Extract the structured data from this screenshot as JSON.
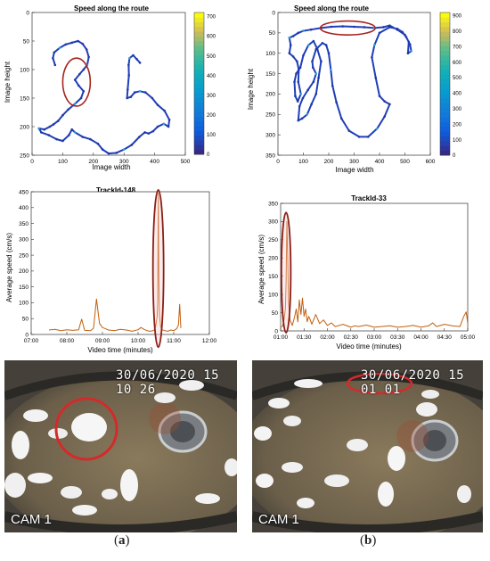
{
  "chart_data": [
    {
      "type": "scatter",
      "panel": "a",
      "title": "Speed along the route",
      "xlabel": "Image width",
      "ylabel": "Image height",
      "xlim": [
        0,
        500
      ],
      "ylim": [
        250,
        0
      ],
      "x_ticks": [
        0,
        100,
        200,
        300,
        400,
        500
      ],
      "y_ticks": [
        0,
        50,
        100,
        150,
        200,
        250
      ],
      "colorbar_ticks": [
        0,
        100,
        200,
        300,
        400,
        500,
        600,
        700
      ],
      "colorbar_range": [
        0,
        720
      ],
      "highlight_circle": {
        "x": 145,
        "y": 122,
        "rx": 45,
        "ry": 42
      },
      "route": [
        [
          75,
          92
        ],
        [
          68,
          80
        ],
        [
          72,
          70
        ],
        [
          90,
          62
        ],
        [
          110,
          56
        ],
        [
          130,
          53
        ],
        [
          150,
          50
        ],
        [
          165,
          55
        ],
        [
          178,
          65
        ],
        [
          185,
          78
        ],
        [
          180,
          92
        ],
        [
          168,
          100
        ],
        [
          155,
          108
        ],
        [
          140,
          118
        ],
        [
          152,
          128
        ],
        [
          168,
          138
        ],
        [
          160,
          150
        ],
        [
          140,
          160
        ],
        [
          118,
          170
        ],
        [
          100,
          180
        ],
        [
          85,
          190
        ],
        [
          70,
          196
        ],
        [
          58,
          200
        ],
        [
          40,
          205
        ],
        [
          22,
          203
        ],
        [
          30,
          210
        ],
        [
          55,
          215
        ],
        [
          80,
          222
        ],
        [
          100,
          225
        ],
        [
          120,
          215
        ],
        [
          130,
          205
        ],
        [
          140,
          210
        ],
        [
          165,
          218
        ],
        [
          190,
          222
        ],
        [
          215,
          230
        ],
        [
          230,
          240
        ],
        [
          250,
          247
        ],
        [
          275,
          246
        ],
        [
          300,
          240
        ],
        [
          325,
          232
        ],
        [
          350,
          218
        ],
        [
          368,
          210
        ],
        [
          380,
          212
        ],
        [
          395,
          208
        ],
        [
          410,
          200
        ],
        [
          430,
          195
        ],
        [
          445,
          200
        ],
        [
          448,
          188
        ],
        [
          432,
          172
        ],
        [
          410,
          162
        ],
        [
          392,
          150
        ],
        [
          370,
          140
        ],
        [
          352,
          138
        ],
        [
          335,
          140
        ],
        [
          322,
          148
        ],
        [
          310,
          150
        ],
        [
          312,
          135
        ],
        [
          316,
          110
        ],
        [
          315,
          92
        ],
        [
          318,
          80
        ],
        [
          330,
          75
        ],
        [
          342,
          82
        ],
        [
          352,
          88
        ]
      ]
    },
    {
      "type": "scatter",
      "panel": "b",
      "title": "Speed along the route",
      "xlabel": "Image width",
      "ylabel": "Image height",
      "xlim": [
        0,
        600
      ],
      "ylim": [
        350,
        0
      ],
      "x_ticks": [
        0,
        100,
        200,
        300,
        400,
        500,
        600
      ],
      "y_ticks": [
        0,
        50,
        100,
        150,
        200,
        250,
        300,
        350
      ],
      "colorbar_ticks": [
        0,
        100,
        200,
        300,
        400,
        500,
        600,
        700,
        800,
        900
      ],
      "colorbar_range": [
        0,
        920
      ],
      "highlight_circle": {
        "x": 275,
        "y": 38,
        "rx": 108,
        "ry": 17
      },
      "route": [
        [
          45,
          62
        ],
        [
          60,
          58
        ],
        [
          80,
          50
        ],
        [
          100,
          45
        ],
        [
          130,
          42
        ],
        [
          170,
          38
        ],
        [
          210,
          35
        ],
        [
          255,
          34
        ],
        [
          300,
          35
        ],
        [
          340,
          36
        ],
        [
          380,
          38
        ],
        [
          415,
          36
        ],
        [
          440,
          32
        ],
        [
          470,
          42
        ],
        [
          500,
          55
        ],
        [
          515,
          72
        ],
        [
          512,
          100
        ],
        [
          525,
          95
        ],
        [
          520,
          78
        ],
        [
          505,
          60
        ],
        [
          490,
          48
        ],
        [
          470,
          40
        ],
        [
          440,
          36
        ],
        [
          400,
          50
        ],
        [
          380,
          80
        ],
        [
          370,
          110
        ],
        [
          385,
          160
        ],
        [
          400,
          205
        ],
        [
          420,
          218
        ],
        [
          440,
          225
        ],
        [
          420,
          255
        ],
        [
          390,
          285
        ],
        [
          355,
          305
        ],
        [
          320,
          305
        ],
        [
          280,
          290
        ],
        [
          250,
          260
        ],
        [
          230,
          220
        ],
        [
          215,
          180
        ],
        [
          208,
          140
        ],
        [
          200,
          100
        ],
        [
          190,
          80
        ],
        [
          175,
          75
        ],
        [
          150,
          90
        ],
        [
          135,
          120
        ],
        [
          138,
          135
        ],
        [
          150,
          150
        ],
        [
          140,
          170
        ],
        [
          118,
          190
        ],
        [
          98,
          210
        ],
        [
          85,
          230
        ],
        [
          80,
          265
        ],
        [
          95,
          260
        ],
        [
          115,
          250
        ],
        [
          132,
          225
        ],
        [
          150,
          200
        ],
        [
          160,
          160
        ],
        [
          170,
          120
        ],
        [
          155,
          90
        ],
        [
          140,
          70
        ],
        [
          120,
          80
        ],
        [
          100,
          105
        ],
        [
          88,
          135
        ],
        [
          72,
          150
        ],
        [
          65,
          170
        ],
        [
          68,
          205
        ],
        [
          78,
          218
        ],
        [
          90,
          200
        ],
        [
          80,
          170
        ],
        [
          82,
          140
        ],
        [
          75,
          120
        ],
        [
          60,
          108
        ],
        [
          45,
          100
        ],
        [
          50,
          80
        ],
        [
          45,
          62
        ]
      ]
    },
    {
      "type": "line",
      "panel": "a",
      "title": "TrackId-148",
      "xlabel": "Video time (minutes)",
      "ylabel": "Average speed (cm/s)",
      "x_tick_labels": [
        "07:00",
        "08:00",
        "09:00",
        "10:00",
        "11:00",
        "12:00"
      ],
      "x_range_minutes": [
        420,
        720
      ],
      "ylim": [
        0,
        450
      ],
      "y_ticks": [
        0,
        50,
        100,
        150,
        200,
        250,
        300,
        350,
        400,
        450
      ],
      "highlight_ellipse": {
        "x_minutes": 634,
        "y": 208,
        "half_width_minutes": 9,
        "half_height": 248
      },
      "series": [
        {
          "color": "#c15f0e",
          "x": [
            450,
            460,
            470,
            480,
            490,
            500,
            503,
            505,
            510,
            520,
            525,
            530,
            532,
            535,
            540,
            545,
            550,
            560,
            570,
            580,
            590,
            600,
            605,
            610,
            615,
            620,
            625,
            628,
            630,
            632,
            633,
            634,
            635,
            636,
            638,
            640,
            645,
            650,
            655,
            660,
            665,
            668,
            670,
            672
          ],
          "y": [
            14,
            16,
            12,
            15,
            13,
            15,
            35,
            48,
            13,
            12,
            20,
            112,
            80,
            35,
            22,
            18,
            14,
            12,
            16,
            14,
            10,
            15,
            22,
            16,
            12,
            10,
            12,
            15,
            30,
            55,
            100,
            445,
            180,
            60,
            25,
            15,
            12,
            10,
            14,
            12,
            18,
            30,
            95,
            20
          ]
        }
      ]
    },
    {
      "type": "line",
      "panel": "b",
      "title": "TrackId-33",
      "xlabel": "Video time (minutes)",
      "ylabel": "Average speed (cm/s)",
      "x_tick_labels": [
        "01:00",
        "01:30",
        "02:00",
        "02:30",
        "03:00",
        "03:30",
        "04:00",
        "04:30",
        "05:00"
      ],
      "x_range_minutes": [
        60,
        300
      ],
      "ylim": [
        0,
        350
      ],
      "y_ticks": [
        0,
        50,
        100,
        150,
        200,
        250,
        300,
        350
      ],
      "highlight_ellipse": {
        "x_minutes": 67,
        "y": 160,
        "half_width_minutes": 6,
        "half_height": 165
      },
      "series": [
        {
          "color": "#c15f0e",
          "x": [
            60,
            62,
            64,
            66,
            67,
            68,
            69,
            70,
            72,
            75,
            78,
            80,
            82,
            84,
            86,
            88,
            90,
            92,
            94,
            96,
            98,
            100,
            105,
            110,
            115,
            120,
            125,
            130,
            140,
            150,
            155,
            160,
            170,
            180,
            190,
            200,
            210,
            220,
            230,
            240,
            250,
            255,
            260,
            270,
            280,
            290,
            295,
            298,
            300
          ],
          "y": [
            10,
            12,
            25,
            60,
            130,
            300,
            210,
            80,
            30,
            15,
            40,
            60,
            25,
            85,
            45,
            90,
            40,
            60,
            25,
            40,
            30,
            18,
            45,
            20,
            30,
            15,
            22,
            12,
            18,
            10,
            14,
            12,
            16,
            10,
            12,
            14,
            10,
            12,
            15,
            10,
            14,
            22,
            12,
            18,
            14,
            12,
            40,
            52,
            20
          ]
        }
      ]
    }
  ],
  "cameras": {
    "a": {
      "timestamp": "30/06/2020 15 10 26",
      "label": "CAM 1"
    },
    "b": {
      "timestamp": "30/06/2020 15 01 01",
      "label": "CAM 1"
    }
  },
  "captions": {
    "a": "a",
    "b": "b"
  }
}
